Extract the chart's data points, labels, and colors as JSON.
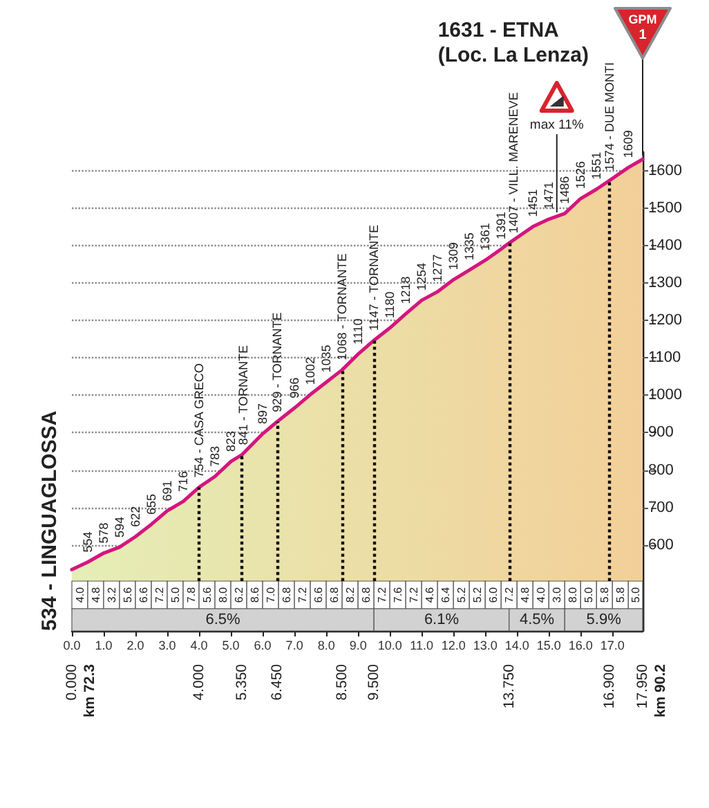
{
  "chart_data": {
    "type": "area",
    "title": "1631 - ETNA\n(Loc. La Lenza)",
    "x": [
      0,
      0.5,
      1,
      1.5,
      2,
      2.5,
      3,
      3.5,
      4,
      4.5,
      5,
      5.35,
      6,
      6.45,
      7,
      7.5,
      8,
      8.5,
      9,
      9.5,
      10,
      10.5,
      11,
      11.5,
      12,
      12.5,
      13,
      13.5,
      13.75,
      14.5,
      15,
      15.5,
      16,
      16.5,
      16.9,
      17.5,
      17.95
    ],
    "values": [
      534,
      554,
      578,
      594,
      622,
      655,
      691,
      716,
      754,
      783,
      823,
      841,
      897,
      929,
      966,
      1002,
      1035,
      1068,
      1110,
      1147,
      1180,
      1218,
      1254,
      1277,
      1309,
      1335,
      1361,
      1391,
      1407,
      1451,
      1471,
      1486,
      1526,
      1551,
      1574,
      1609,
      1631
    ],
    "value_labels": [
      "534 - LINGUAGLOSSA",
      "554",
      "578",
      "594",
      "622",
      "655",
      "691",
      "716",
      "754 - CASA GRECO",
      "783",
      "823",
      "841 - TORNANTE",
      "897",
      "929 - TORNANTE",
      "966",
      "1002",
      "1035",
      "1068 - TORNANTE",
      "1110",
      "1147 - TORNANTE",
      "1180",
      "1218",
      "1254",
      "1277",
      "1309",
      "1335",
      "1361",
      "1391",
      "1407 - VILL. MARENEVE",
      "1451",
      "1471",
      "1486",
      "1526",
      "1551",
      "1574 - DUE MONTI",
      "1609",
      null
    ],
    "color": "#d5157e",
    "xlim": [
      0,
      17.95
    ],
    "xticks": [
      {
        "value": 0,
        "label": "0.0"
      },
      {
        "value": 1,
        "label": "1.0"
      },
      {
        "value": 2,
        "label": "2.0"
      },
      {
        "value": 3,
        "label": "3.0"
      },
      {
        "value": 4,
        "label": "4.0"
      },
      {
        "value": 5,
        "label": "5.0"
      },
      {
        "value": 6,
        "label": "6.0"
      },
      {
        "value": 7,
        "label": "7.0"
      },
      {
        "value": 8,
        "label": "8.0"
      },
      {
        "value": 9,
        "label": "9.0"
      },
      {
        "value": 10,
        "label": "10.0"
      },
      {
        "value": 11,
        "label": "11.0"
      },
      {
        "value": 12,
        "label": "12.0"
      },
      {
        "value": 13,
        "label": "13.0"
      },
      {
        "value": 14,
        "label": "14.0"
      },
      {
        "value": 15,
        "label": "15.0"
      },
      {
        "value": 16,
        "label": "16.0"
      },
      {
        "value": 17,
        "label": "17.0"
      }
    ],
    "x2lim": [
      0,
      17.95
    ],
    "x2ticks": [
      {
        "value": 0,
        "label": "0.000"
      },
      {
        "value": 4,
        "label": "4.000"
      },
      {
        "value": 5.35,
        "label": "5.350"
      },
      {
        "value": 6.45,
        "label": "6.450"
      },
      {
        "value": 8.5,
        "label": "8.500"
      },
      {
        "value": 9.5,
        "label": "9.500"
      },
      {
        "value": 13.75,
        "label": "13.750"
      },
      {
        "value": 16.9,
        "label": "16.900"
      },
      {
        "value": 17.95,
        "label": "17.950"
      }
    ],
    "ylim": [
      370,
      1650
    ],
    "yticks": [
      600,
      700,
      800,
      900,
      1000,
      1100,
      1200,
      1300,
      1400,
      1500,
      1600
    ],
    "grid": "y",
    "ref_lines": [
      {
        "axis": "x",
        "value": 4,
        "line_style": "dotted"
      },
      {
        "axis": "x",
        "value": 5.35,
        "line_style": "dotted"
      },
      {
        "axis": "x",
        "value": 6.45,
        "line_style": "dotted"
      },
      {
        "axis": "x",
        "value": 8.5,
        "line_style": "dotted"
      },
      {
        "axis": "x",
        "value": 9.5,
        "line_style": "dotted"
      },
      {
        "axis": "x",
        "value": 13.75,
        "line_style": "dotted"
      },
      {
        "axis": "x",
        "value": 16.9,
        "line_style": "dotted"
      }
    ],
    "bands": [
      {
        "axis": "x",
        "from": 0,
        "to": 0.5,
        "label": "4.0"
      },
      {
        "axis": "x",
        "from": 0.5,
        "to": 1,
        "label": "4.8"
      },
      {
        "axis": "x",
        "from": 1,
        "to": 1.5,
        "label": "3.2"
      },
      {
        "axis": "x",
        "from": 1.5,
        "to": 2,
        "label": "5.6"
      },
      {
        "axis": "x",
        "from": 2,
        "to": 2.5,
        "label": "6.6"
      },
      {
        "axis": "x",
        "from": 2.5,
        "to": 3,
        "label": "7.2"
      },
      {
        "axis": "x",
        "from": 3,
        "to": 3.5,
        "label": "5.0"
      },
      {
        "axis": "x",
        "from": 3.5,
        "to": 4,
        "label": "7.8"
      },
      {
        "axis": "x",
        "from": 4,
        "to": 4.5,
        "label": "5.6"
      },
      {
        "axis": "x",
        "from": 4.5,
        "to": 5,
        "label": "8.0"
      },
      {
        "axis": "x",
        "from": 5,
        "to": 5.5,
        "label": "6.2"
      },
      {
        "axis": "x",
        "from": 5.5,
        "to": 6,
        "label": "8.6"
      },
      {
        "axis": "x",
        "from": 6,
        "to": 6.5,
        "label": "7.0"
      },
      {
        "axis": "x",
        "from": 6.5,
        "to": 7,
        "label": "6.8"
      },
      {
        "axis": "x",
        "from": 7,
        "to": 7.5,
        "label": "7.2"
      },
      {
        "axis": "x",
        "from": 7.5,
        "to": 8,
        "label": "6.6"
      },
      {
        "axis": "x",
        "from": 8,
        "to": 8.5,
        "label": "6.8"
      },
      {
        "axis": "x",
        "from": 8.5,
        "to": 9,
        "label": "8.2"
      },
      {
        "axis": "x",
        "from": 9,
        "to": 9.5,
        "label": "6.8"
      },
      {
        "axis": "x",
        "from": 9.5,
        "to": 10,
        "label": "7.2"
      },
      {
        "axis": "x",
        "from": 10,
        "to": 10.5,
        "label": "7.6"
      },
      {
        "axis": "x",
        "from": 10.5,
        "to": 11,
        "label": "7.2"
      },
      {
        "axis": "x",
        "from": 11,
        "to": 11.5,
        "label": "4.6"
      },
      {
        "axis": "x",
        "from": 11.5,
        "to": 12,
        "label": "6.4"
      },
      {
        "axis": "x",
        "from": 12,
        "to": 12.5,
        "label": "5.2"
      },
      {
        "axis": "x",
        "from": 12.5,
        "to": 13,
        "label": "5.2"
      },
      {
        "axis": "x",
        "from": 13,
        "to": 13.5,
        "label": "6.0"
      },
      {
        "axis": "x",
        "from": 13.5,
        "to": 14,
        "label": "7.2"
      },
      {
        "axis": "x",
        "from": 14,
        "to": 14.5,
        "label": "4.8"
      },
      {
        "axis": "x",
        "from": 14.5,
        "to": 15,
        "label": "4.0"
      },
      {
        "axis": "x",
        "from": 15,
        "to": 15.5,
        "label": "3.0"
      },
      {
        "axis": "x",
        "from": 15.5,
        "to": 16,
        "label": "8.0"
      },
      {
        "axis": "x",
        "from": 16,
        "to": 16.5,
        "label": "5.0"
      },
      {
        "axis": "x",
        "from": 16.5,
        "to": 17,
        "label": "5.8"
      },
      {
        "axis": "x",
        "from": 17,
        "to": 17.5,
        "label": "5.8"
      },
      {
        "axis": "x",
        "from": 17.5,
        "to": 17.95,
        "label": "5.0"
      },
      {
        "axis": "x",
        "from": 0,
        "to": 9.5,
        "label": "6.5%",
        "color": "#d2d2d2"
      },
      {
        "axis": "x",
        "from": 9.5,
        "to": 13.75,
        "label": "6.1%",
        "color": "#d2d2d2"
      },
      {
        "axis": "x",
        "from": 13.75,
        "to": 15.5,
        "label": "4.5%",
        "color": "#d2d2d2"
      },
      {
        "axis": "x",
        "from": 15.5,
        "to": 17.95,
        "label": "5.9%",
        "color": "#d2d2d2"
      }
    ],
    "annotations": [
      {
        "text": "GPM\n1",
        "x": 17.95,
        "y": 1631
      },
      {
        "text": "max 11%",
        "x": 15.25,
        "y": 1478
      },
      "km 72.3",
      "km 90.2"
    ]
  }
}
